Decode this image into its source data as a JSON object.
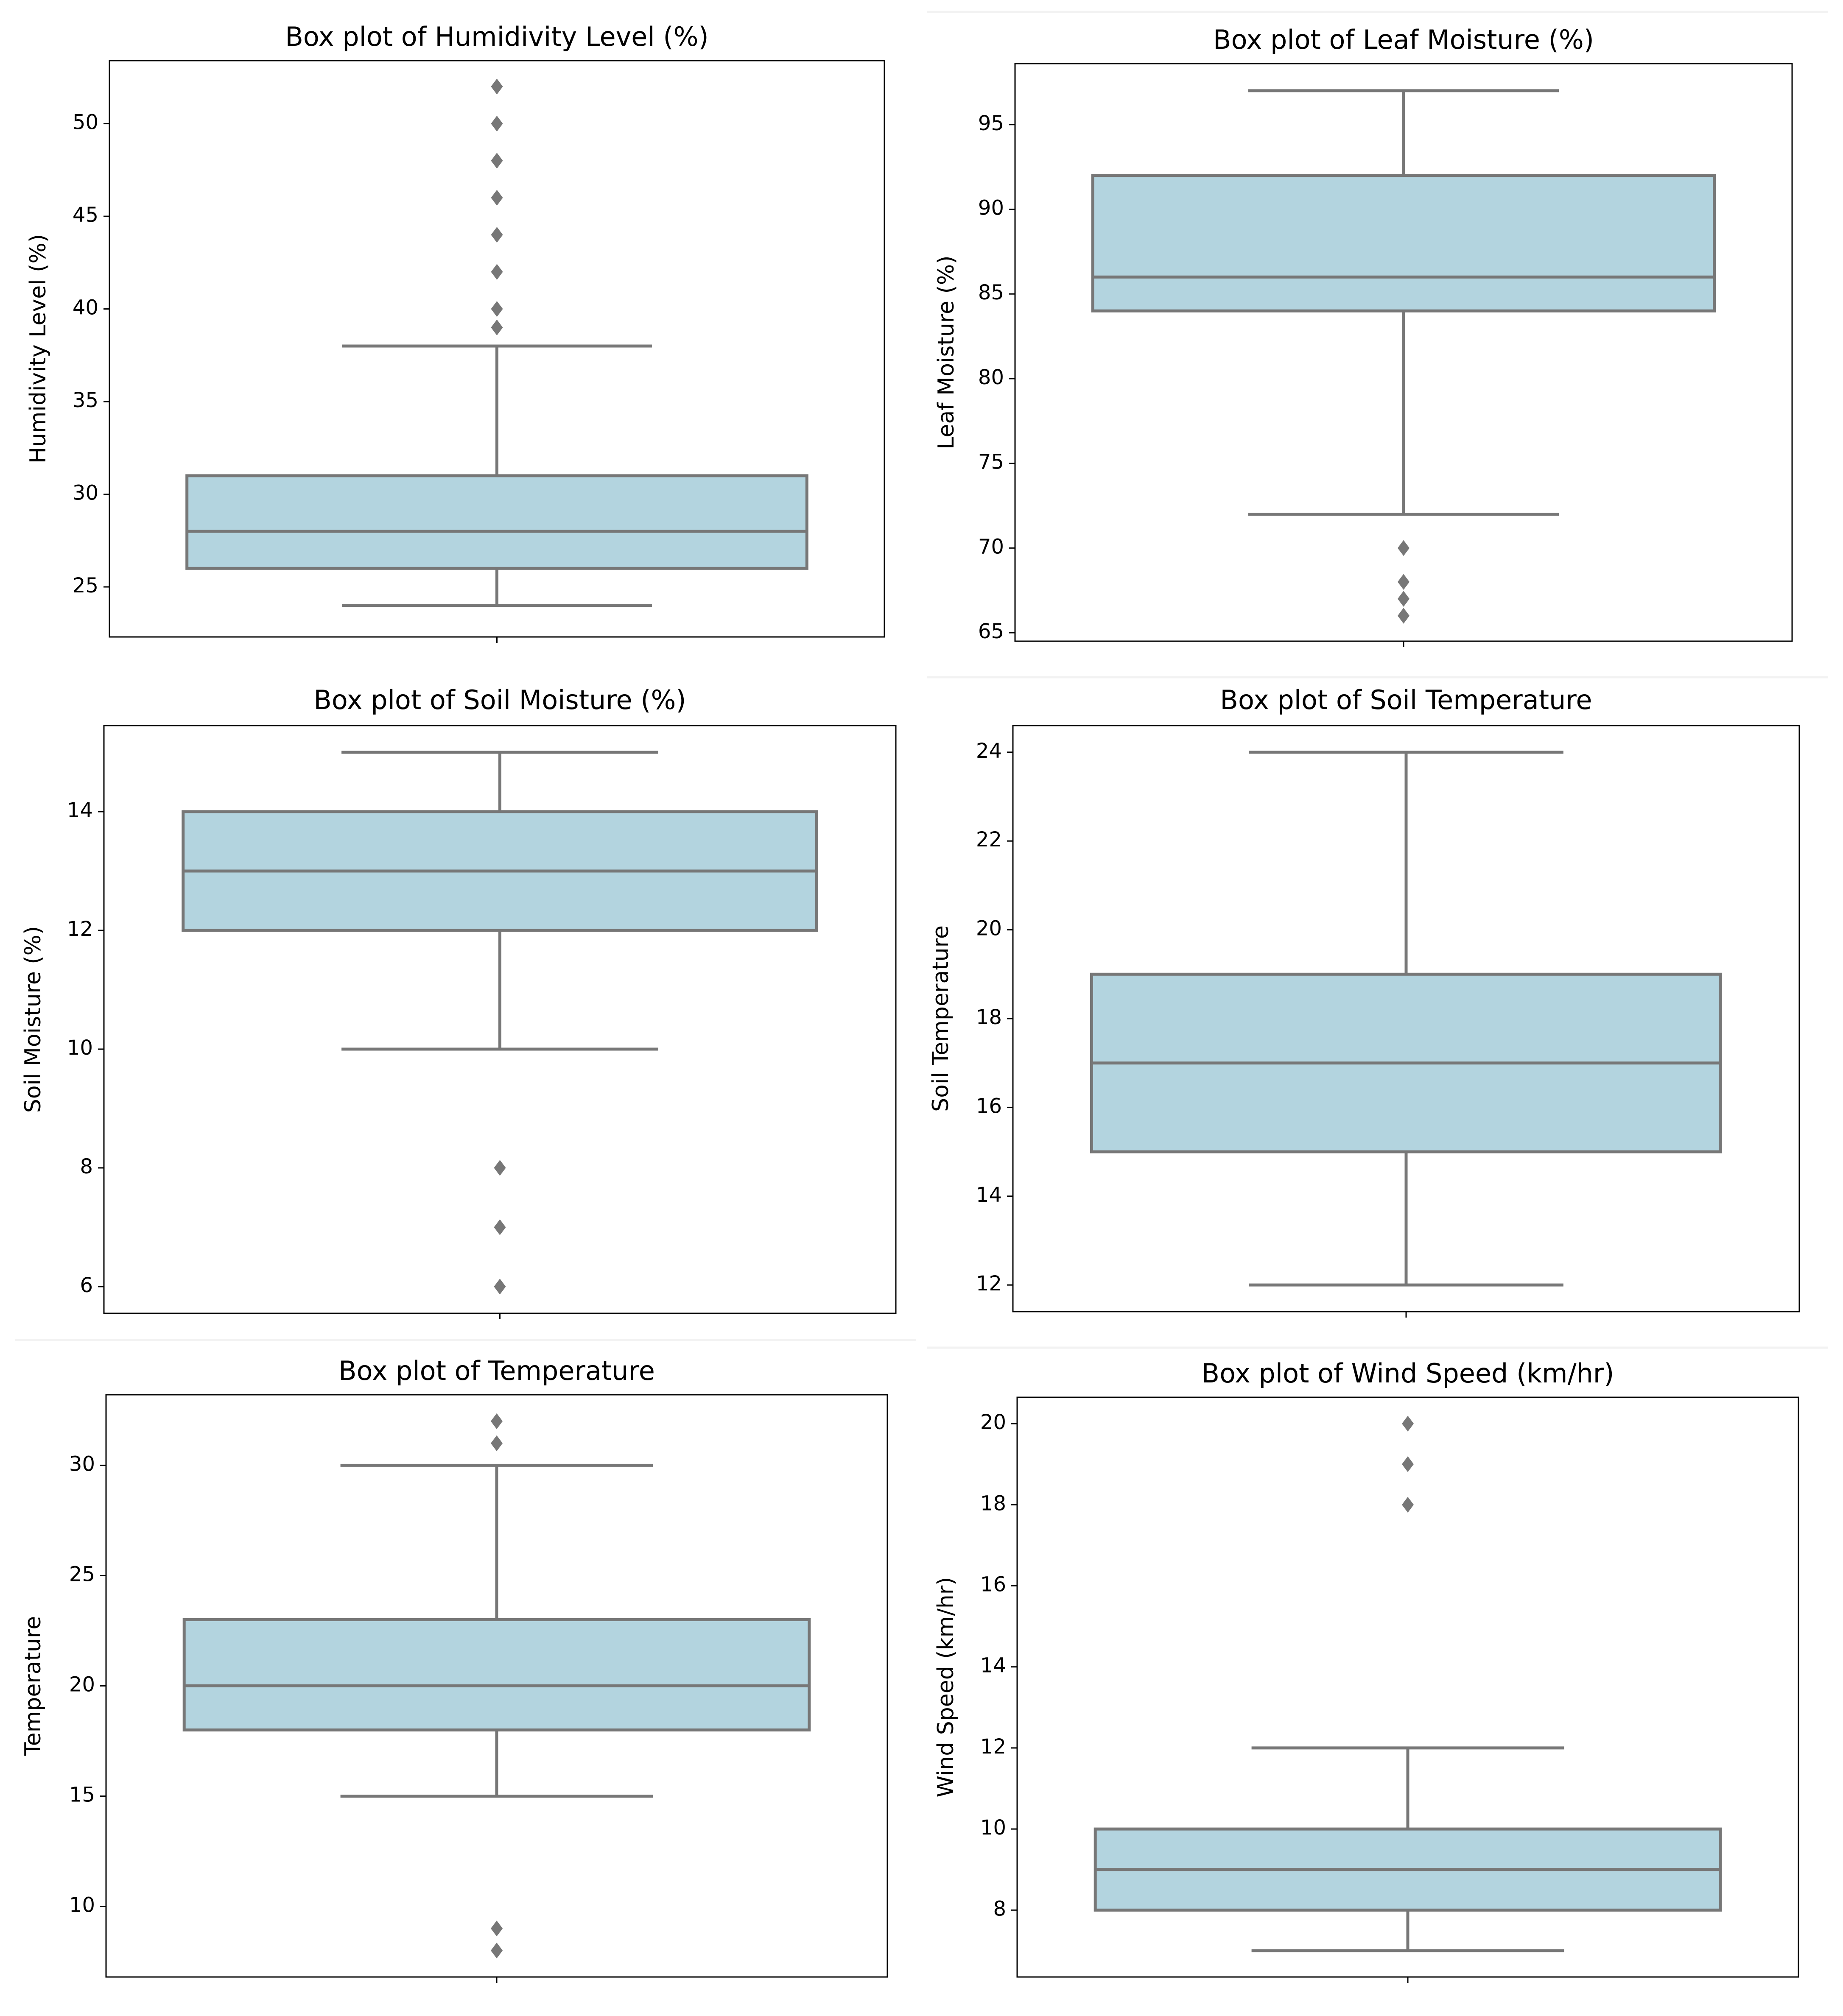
{
  "chart_data": [
    {
      "type": "box",
      "title": "Box plot of Humidivity Level (%)",
      "xlabel": "",
      "ylabel": "Humidivity Level (%)",
      "ylim": [
        22.3,
        53.4
      ],
      "yticks": [
        25,
        30,
        35,
        40,
        45,
        50
      ],
      "box": {
        "whisker_low": 24,
        "q1": 26,
        "median": 28,
        "q3": 31,
        "whisker_high": 38
      },
      "outliers": [
        39,
        40,
        42,
        44,
        46,
        48,
        50,
        52
      ]
    },
    {
      "type": "box",
      "title": "Box plot of Leaf Moisture (%)",
      "xlabel": "",
      "ylabel": "Leaf Moisture (%)",
      "ylim": [
        64.5,
        98.6
      ],
      "yticks": [
        65,
        70,
        75,
        80,
        85,
        90,
        95
      ],
      "box": {
        "whisker_low": 72,
        "q1": 84,
        "median": 86,
        "q3": 92,
        "whisker_high": 97
      },
      "outliers": [
        66,
        67,
        68,
        70
      ]
    },
    {
      "type": "box",
      "title": "Box plot of Soil Moisture (%)",
      "xlabel": "",
      "ylabel": "Soil Moisture (%)",
      "ylim": [
        5.55,
        15.45
      ],
      "yticks": [
        6,
        8,
        10,
        12,
        14
      ],
      "box": {
        "whisker_low": 10,
        "q1": 12,
        "median": 13,
        "q3": 14,
        "whisker_high": 15
      },
      "outliers": [
        6,
        7,
        8
      ]
    },
    {
      "type": "box",
      "title": "Box plot of Soil Temperature",
      "xlabel": "",
      "ylabel": "Soil Temperature",
      "ylim": [
        11.4,
        24.6
      ],
      "yticks": [
        12,
        14,
        16,
        18,
        20,
        22,
        24
      ],
      "box": {
        "whisker_low": 12,
        "q1": 15,
        "median": 17,
        "q3": 19,
        "whisker_high": 24
      },
      "outliers": []
    },
    {
      "type": "box",
      "title": "Box plot of Temperature",
      "xlabel": "",
      "ylabel": "Temperature",
      "ylim": [
        6.8,
        33.2
      ],
      "yticks": [
        10,
        15,
        20,
        25,
        30
      ],
      "box": {
        "whisker_low": 15,
        "q1": 18,
        "median": 20,
        "q3": 23,
        "whisker_high": 30
      },
      "outliers": [
        8,
        9,
        31,
        32
      ]
    },
    {
      "type": "box",
      "title": "Box plot of Wind Speed (km/hr)",
      "xlabel": "",
      "ylabel": "Wind Speed (km/hr)",
      "ylim": [
        6.35,
        20.65
      ],
      "yticks": [
        8,
        10,
        12,
        14,
        16,
        18,
        20
      ],
      "box": {
        "whisker_low": 7,
        "q1": 8,
        "median": 9,
        "q3": 10,
        "whisker_high": 12
      },
      "outliers": [
        18,
        19,
        20
      ]
    }
  ],
  "style": {
    "box_fill": "#b3d4df",
    "line_color": "#777777",
    "axis_color": "#000000",
    "separator_color": "#f2f2f2",
    "background": "#ffffff"
  }
}
